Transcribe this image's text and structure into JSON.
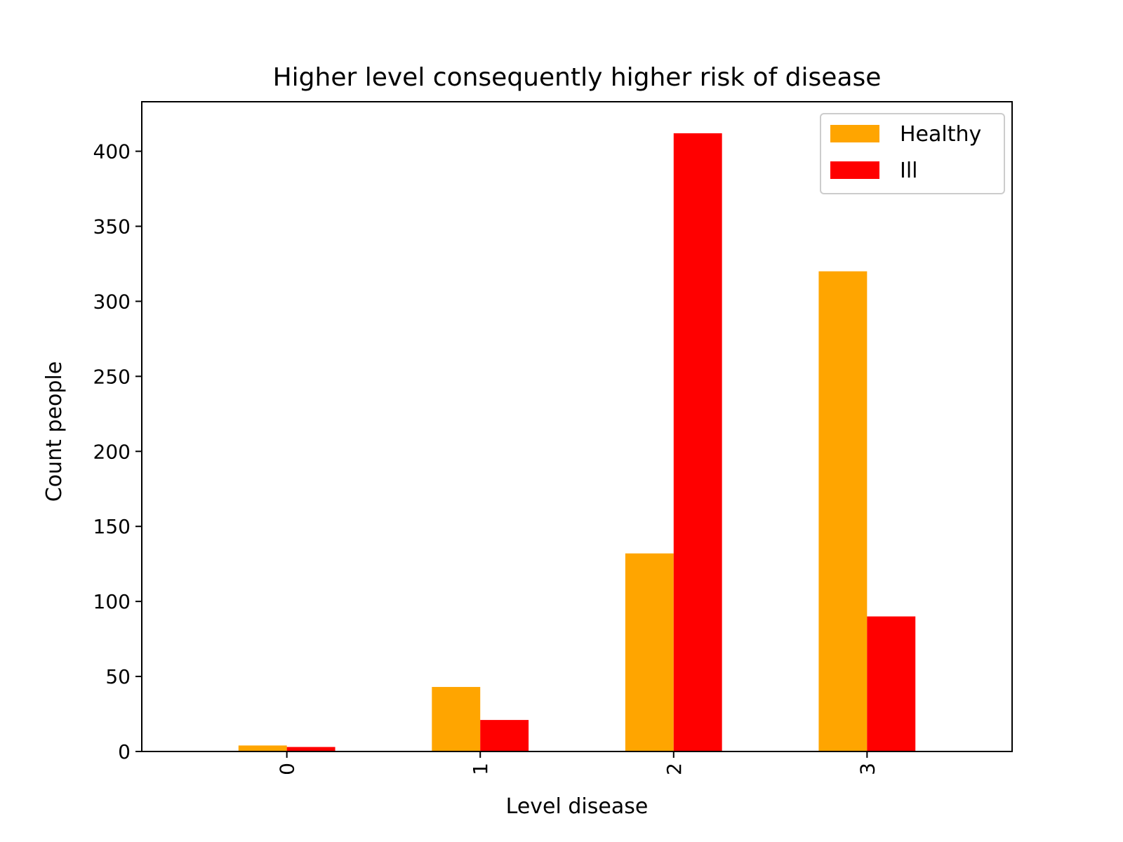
{
  "chart_data": {
    "type": "bar",
    "title": "Higher level consequently higher risk of disease",
    "xlabel": "Level disease",
    "ylabel": "Count people",
    "categories": [
      "0",
      "1",
      "2",
      "3"
    ],
    "series": [
      {
        "name": "Healthy",
        "color": "#FFA500",
        "values": [
          4,
          43,
          132,
          320
        ]
      },
      {
        "name": "Ill",
        "color": "#FF0000",
        "values": [
          3,
          21,
          412,
          90
        ]
      }
    ],
    "ylim": [
      0,
      433
    ],
    "yticks": [
      0,
      50,
      100,
      150,
      200,
      250,
      300,
      350,
      400
    ],
    "grid": false,
    "legend_position": "top-right",
    "xtick_rotation": "vertical"
  }
}
